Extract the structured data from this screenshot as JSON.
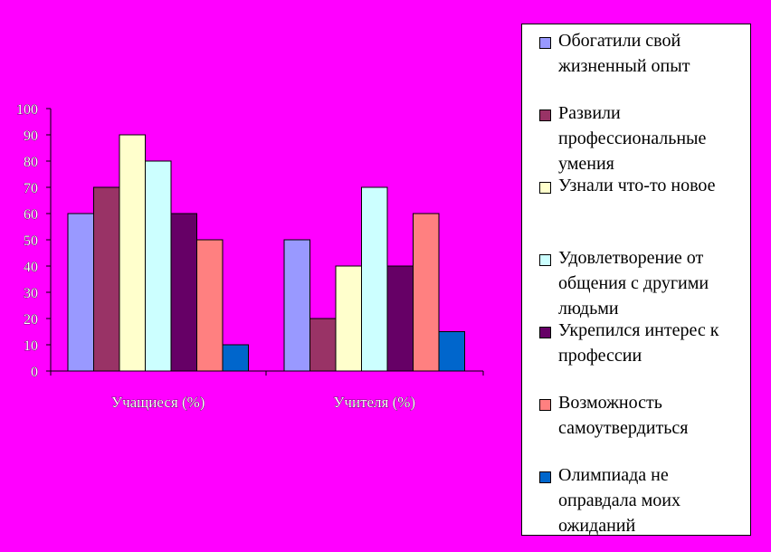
{
  "chart_data": {
    "type": "bar",
    "categories": [
      "Учащиеся (%)",
      "Учителя (%)"
    ],
    "series": [
      {
        "name": "Обогатили свой жизненный опыт",
        "color": "#9999FF",
        "values": [
          60,
          50
        ]
      },
      {
        "name": "Развили профессиональные умения",
        "color": "#993366",
        "values": [
          70,
          20
        ]
      },
      {
        "name": "Узнали что-то новое",
        "color": "#FFFFCC",
        "values": [
          90,
          40
        ]
      },
      {
        "name": "Удовлетворение от общения с другими людьми",
        "color": "#CCFFFF",
        "values": [
          80,
          70
        ]
      },
      {
        "name": "Укрепился интерес к профессии",
        "color": "#660066",
        "values": [
          60,
          40
        ]
      },
      {
        "name": "Возможность самоутвердиться",
        "color": "#FF8080",
        "values": [
          50,
          60
        ]
      },
      {
        "name": "Олимпиада не оправдала моих ожиданий",
        "color": "#0066CC",
        "values": [
          10,
          15
        ]
      }
    ],
    "yticks": [
      "0",
      "10",
      "20",
      "30",
      "40",
      "50",
      "60",
      "70",
      "80",
      "90",
      "100"
    ],
    "ylim": [
      0,
      100
    ],
    "grid": false,
    "legend_position": "right",
    "background": "#FF00FF"
  }
}
